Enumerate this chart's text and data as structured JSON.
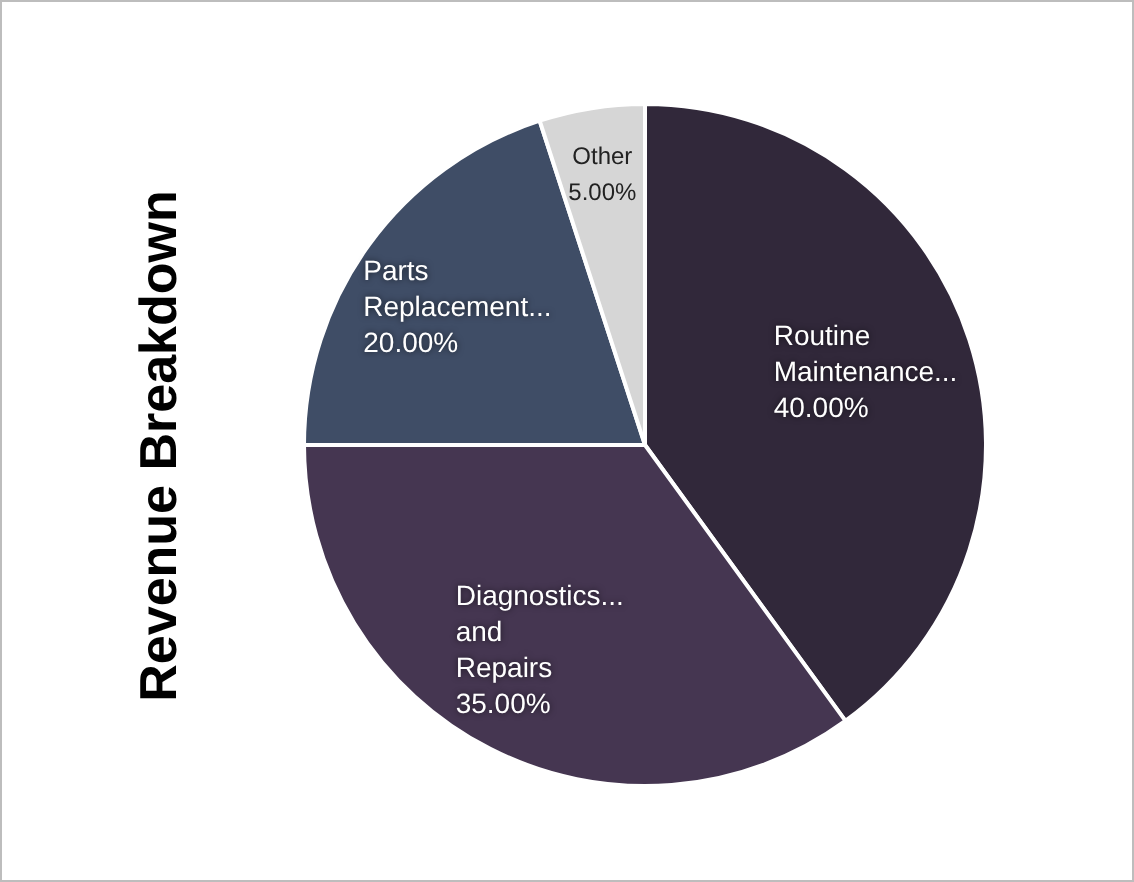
{
  "chart_data": {
    "type": "pie",
    "title": "Revenue Breakdown",
    "categories": [
      "Routine Maintenance...",
      "Diagnostics... and Repairs",
      "Parts Replacement...",
      "Other"
    ],
    "values": [
      40,
      35,
      20,
      5
    ],
    "colors": [
      "#31283a",
      "#453651",
      "#3f4d66",
      "#d6d6d6"
    ],
    "value_labels": [
      "40.00%",
      "35.00%",
      "20.00%",
      "5.00%"
    ],
    "legend": false
  }
}
